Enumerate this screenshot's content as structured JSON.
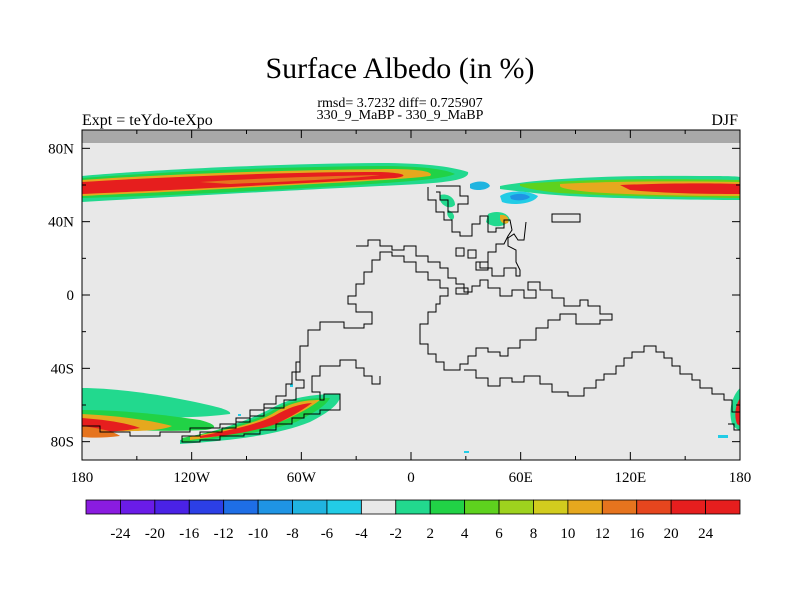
{
  "chart_data": {
    "type": "heatmap",
    "title": "Surface Albedo (in %)",
    "stats_line": "rmsd= 3.7232 diff= 0.725907",
    "subtitle": "330_9_MaBP - 330_9_MaBP",
    "left_label": "Expt = teYdo-teXpo",
    "right_label": "DJF",
    "x_ticks": [
      "180",
      "120W",
      "60W",
      "0",
      "60E",
      "120E",
      "180"
    ],
    "y_ticks": [
      "80N",
      "40N",
      "0",
      "40S",
      "80S"
    ],
    "xlim": [
      -180,
      180
    ],
    "ylim": [
      -90,
      90
    ],
    "colorbar": {
      "labels": [
        "-24",
        "-20",
        "-16",
        "-12",
        "-10",
        "-8",
        "-6",
        "-4",
        "-2",
        "2",
        "4",
        "6",
        "8",
        "10",
        "12",
        "16",
        "20",
        "24"
      ],
      "colors": [
        "#8a1ce0",
        "#6a1ce8",
        "#4a22e6",
        "#2c3fe6",
        "#1e6ee6",
        "#1f94e4",
        "#20b4e0",
        "#22cce6",
        "#e8e8e8",
        "#22d98e",
        "#21d246",
        "#5ed21e",
        "#9ed21e",
        "#d2cc1e",
        "#e6a81e",
        "#e6741e",
        "#e6461e",
        "#e61e1e",
        "#e61e1e"
      ]
    }
  }
}
